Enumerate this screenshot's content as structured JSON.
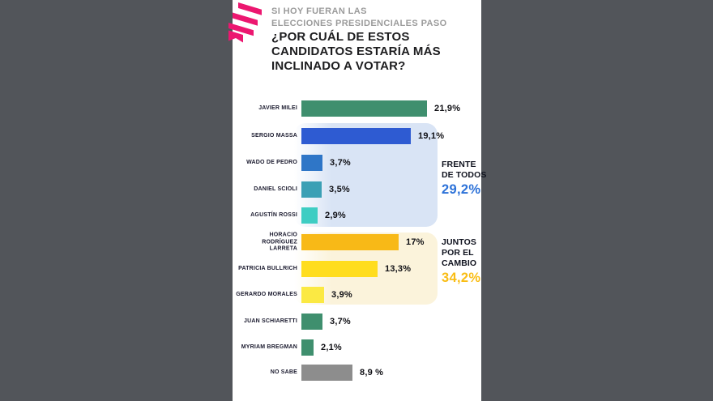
{
  "header": {
    "subtitle_lines": [
      "SI HOY FUERAN LAS",
      "ELECCIONES PRESIDENCIALES PASO"
    ],
    "title_lines": [
      "¿POR CUÁL DE ESTOS",
      "CANDIDATOS ESTARÍA MÁS",
      "INCLINADO A VOTAR?"
    ]
  },
  "colors": {
    "background": "#52555A",
    "sheet": "#FFFFFF",
    "brand_pink": "#EC1770",
    "subtitle_gray": "#9B9B9B",
    "title_black": "#1D1D1F"
  },
  "chart_data": {
    "type": "bar",
    "orientation": "horizontal",
    "title": "¿POR CUÁL DE ESTOS CANDIDATOS ESTARÍA MÁS INCLINADO A VOTAR?",
    "subtitle": "SI HOY FUERAN LAS ELECCIONES PRESIDENCIALES PASO",
    "unit": "%",
    "xlim": [
      0,
      25
    ],
    "categories": [
      "JAVIER MILEI",
      "SERGIO MASSA",
      "WADO DE PEDRO",
      "DANIEL SCIOLI",
      "AGUSTÍN ROSSI",
      "HORACIO RODRÍGUEZ LARRETA",
      "PATRICIA BULLRICH",
      "GERARDO MORALES",
      "JUAN SCHIARETTI",
      "MYRIAM BREGMAN",
      "NO SABE"
    ],
    "values": [
      21.9,
      19.1,
      3.7,
      3.5,
      2.9,
      17,
      13.3,
      3.9,
      3.7,
      2.1,
      8.9
    ],
    "rows": [
      {
        "label_lines": [
          "JAVIER MILEI"
        ],
        "value": 21.9,
        "value_label": "21,9%",
        "color": "#3F8F6E"
      },
      {
        "label_lines": [
          "SERGIO MASSA"
        ],
        "value": 19.1,
        "value_label": "19,1%",
        "color": "#2E5BD2"
      },
      {
        "label_lines": [
          "WADO DE PEDRO"
        ],
        "value": 3.7,
        "value_label": "3,7%",
        "color": "#2F76C7"
      },
      {
        "label_lines": [
          "DANIEL SCIOLI"
        ],
        "value": 3.5,
        "value_label": "3,5%",
        "color": "#3BA0B5"
      },
      {
        "label_lines": [
          "AGUSTÍN ROSSI"
        ],
        "value": 2.9,
        "value_label": "2,9%",
        "color": "#3ECDC3"
      },
      {
        "label_lines": [
          "HORACIO",
          "RODRÍGUEZ",
          "LARRETA"
        ],
        "value": 17,
        "value_label": "17%",
        "color": "#F8B917"
      },
      {
        "label_lines": [
          "PATRICIA BULLRICH"
        ],
        "value": 13.3,
        "value_label": "13,3%",
        "color": "#FFDD1E"
      },
      {
        "label_lines": [
          "GERARDO MORALES"
        ],
        "value": 3.9,
        "value_label": "3,9%",
        "color": "#FBE943"
      },
      {
        "label_lines": [
          "JUAN SCHIARETTI"
        ],
        "value": 3.7,
        "value_label": "3,7%",
        "color": "#3F8F6E"
      },
      {
        "label_lines": [
          "MYRIAM BREGMAN"
        ],
        "value": 2.1,
        "value_label": "2,1%",
        "color": "#3F8F6E"
      },
      {
        "label_lines": [
          "NO SABE"
        ],
        "value": 8.9,
        "value_label": "8,9 %",
        "color": "#8D8D8D"
      }
    ],
    "groups": [
      {
        "name_lines": [
          "FRENTE",
          "DE TODOS"
        ],
        "total": 29.2,
        "total_label": "29,2%",
        "members": [
          "SERGIO MASSA",
          "WADO DE PEDRO",
          "DANIEL SCIOLI",
          "AGUSTÍN ROSSI"
        ],
        "panel_color": "#D9E4F5",
        "accent_color": "#2D72D8"
      },
      {
        "name_lines": [
          "JUNTOS",
          "POR EL",
          "CAMBIO"
        ],
        "total": 34.2,
        "total_label": "34,2%",
        "members": [
          "HORACIO RODRÍGUEZ LARRETA",
          "PATRICIA BULLRICH",
          "GERARDO MORALES"
        ],
        "panel_color": "#FBF3DB",
        "accent_color": "#F9BD15"
      }
    ],
    "legend_position": "none",
    "grid": false
  }
}
